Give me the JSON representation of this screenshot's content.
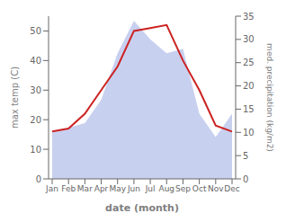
{
  "chart_data": {
    "type": "line",
    "xlabel": "date (month)",
    "ylabel": "max temp (C)",
    "y2label": "med. precipitation (kg/m2)",
    "categories": [
      "Jan",
      "Feb",
      "Mar",
      "Apr",
      "May",
      "Jun",
      "Jul",
      "Aug",
      "Sep",
      "Oct",
      "Nov",
      "Dec"
    ],
    "series": [
      {
        "type": "area",
        "color": "#c8d0f0",
        "axis": "y2",
        "values": [
          10,
          11,
          12,
          17,
          27,
          34,
          30,
          27,
          28,
          14,
          9,
          14
        ]
      },
      {
        "type": "line",
        "color": "#cc2222",
        "values": [
          16,
          17,
          22,
          30,
          38,
          50,
          51,
          52,
          40,
          30,
          18,
          16
        ]
      }
    ],
    "ylim": [
      0,
      55
    ],
    "yticks": [
      0,
      10,
      20,
      30,
      40,
      50
    ],
    "y2lim": [
      0,
      35
    ],
    "y2ticks": [
      0,
      5,
      10,
      15,
      20,
      25,
      30,
      35
    ],
    "grid": false
  }
}
